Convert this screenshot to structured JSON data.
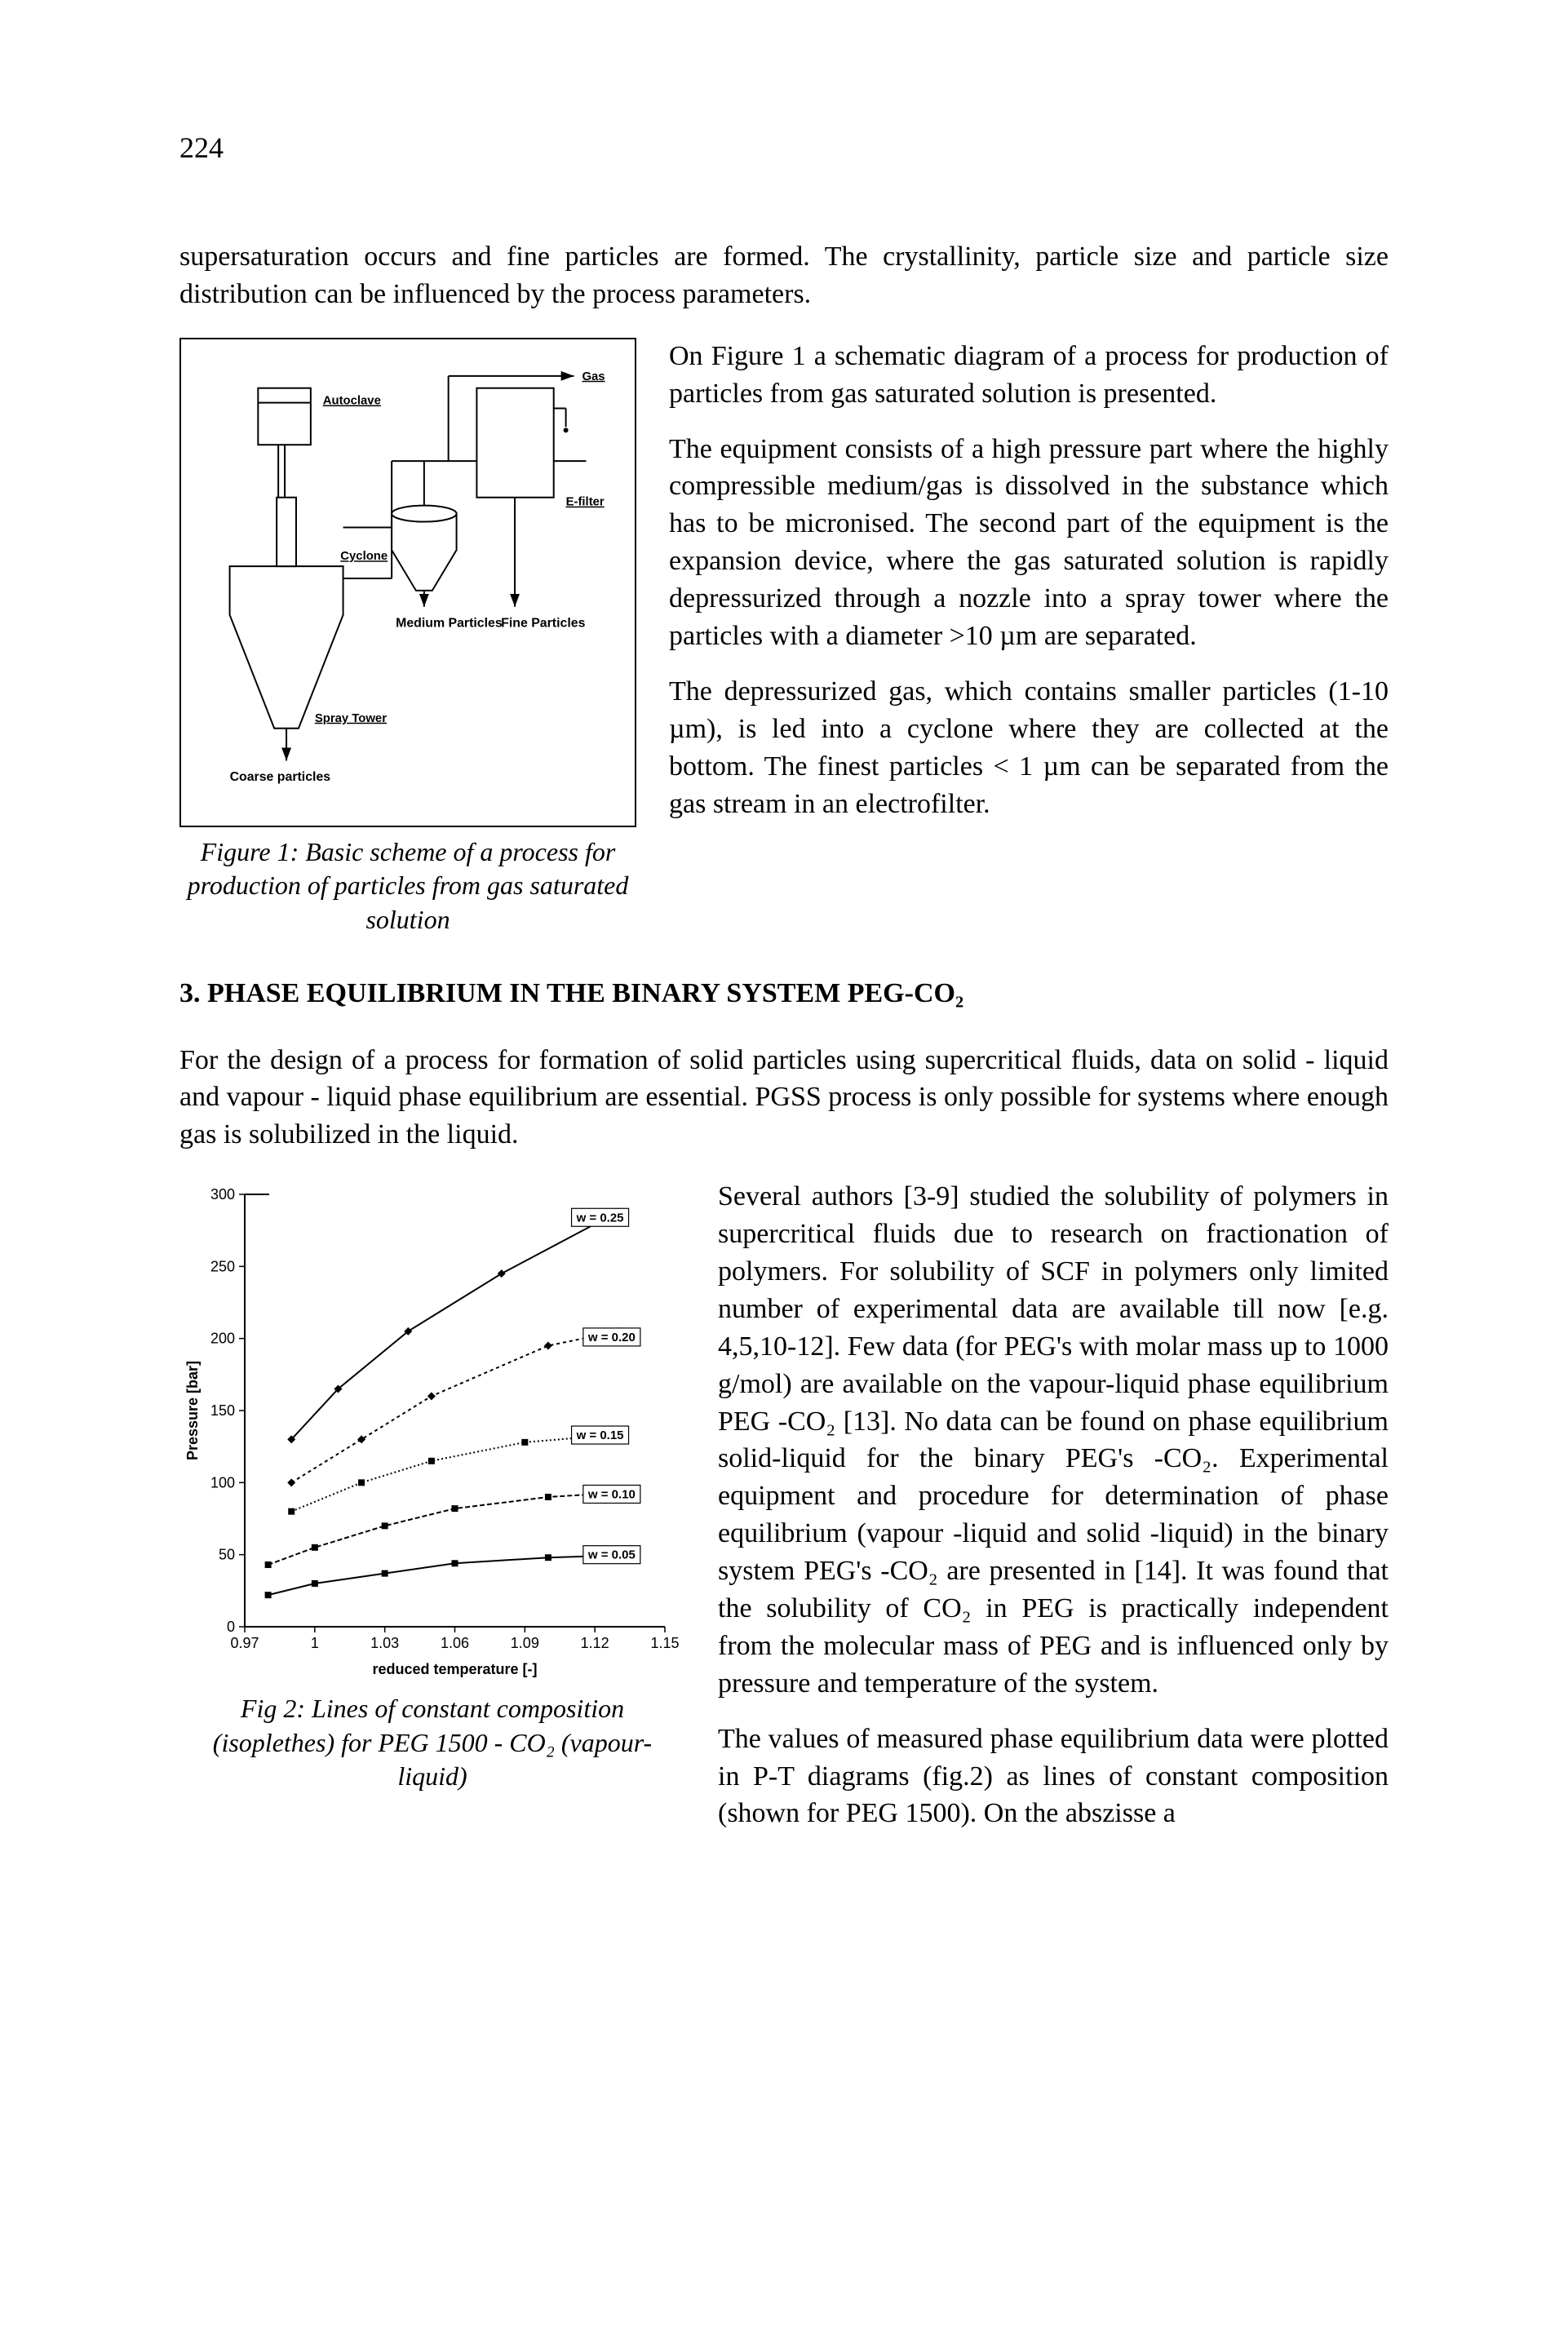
{
  "page_number": "224",
  "intro_para": "supersaturation occurs and fine particles are formed. The crystallinity, particle size and particle size distribution can be influenced by the process parameters.",
  "fig1": {
    "labels": {
      "gas": "Gas",
      "autoclave": "Autoclave",
      "efilter": "E-filter",
      "cyclone": "Cyclone",
      "medium": "Medium Particles",
      "fine": "Fine Particles",
      "spray": "Spray Tower",
      "coarse": "Coarse particles"
    },
    "caption": "Figure 1: Basic scheme of a process for production of particles from gas saturated solution"
  },
  "paras1": {
    "p1": "On Figure 1 a schematic diagram of a process for production of particles from gas saturated solution is presented.",
    "p2": "The equipment consists of a high pressure part where the highly compressible medium/gas is dissolved in the substance which has to be micronised. The second part of the equipment is the expansion device, where the gas saturated solution is rapidly depressurized through a nozzle into a spray tower where the particles with a diameter >10 µm are separated.",
    "p3": "The depressurized gas, which contains smaller particles (1-10 µm), is led into a cyclone where they are collected at the bottom. The finest particles < 1 µm can be separated from the gas stream in an electrofilter."
  },
  "heading": "3. PHASE EQUILIBRIUM IN THE BINARY SYSTEM PEG-CO₂",
  "para_after_heading": "For the design of a process for formation of solid particles using supercritical fluids, data on solid - liquid and vapour - liquid phase equilibrium are essential. PGSS process is only possible for systems where enough gas is solubilized in the liquid.",
  "fig2": {
    "caption": "Fig 2: Lines of constant composition (isoplethes) for PEG 1500 - CO₂ (vapour-liquid)",
    "x_label": "reduced temperature [-]",
    "y_label": "Pressure [bar]",
    "x_ticks": [
      "0.97",
      "1",
      "1.03",
      "1.06",
      "1.09",
      "1.12",
      "1.15"
    ],
    "y_ticks": [
      "0",
      "50",
      "100",
      "150",
      "200",
      "250",
      "300"
    ],
    "series": [
      {
        "label": "w = 0.25",
        "dash": "none",
        "marker": "diamond",
        "points": [
          [
            0.99,
            130
          ],
          [
            1.01,
            165
          ],
          [
            1.04,
            205
          ],
          [
            1.08,
            245
          ],
          [
            1.13,
            288
          ]
        ],
        "label_at": [
          1.11,
          284
        ]
      },
      {
        "label": "w = 0.20",
        "dash": "4,4",
        "marker": "diamond",
        "points": [
          [
            0.99,
            100
          ],
          [
            1.02,
            130
          ],
          [
            1.05,
            160
          ],
          [
            1.1,
            195
          ],
          [
            1.13,
            205
          ]
        ],
        "label_at": [
          1.115,
          201
        ]
      },
      {
        "label": "w = 0.15",
        "dash": "2,3",
        "marker": "square",
        "points": [
          [
            0.99,
            80
          ],
          [
            1.02,
            100
          ],
          [
            1.05,
            115
          ],
          [
            1.09,
            128
          ],
          [
            1.12,
            132
          ]
        ],
        "label_at": [
          1.11,
          133
        ]
      },
      {
        "label": "w = 0.10",
        "dash": "6,3",
        "marker": "square",
        "points": [
          [
            0.98,
            43
          ],
          [
            1.0,
            55
          ],
          [
            1.03,
            70
          ],
          [
            1.06,
            82
          ],
          [
            1.1,
            90
          ],
          [
            1.12,
            92
          ]
        ],
        "label_at": [
          1.115,
          92
        ]
      },
      {
        "label": "w = 0.05",
        "dash": "none",
        "marker": "square",
        "points": [
          [
            0.98,
            22
          ],
          [
            1.0,
            30
          ],
          [
            1.03,
            37
          ],
          [
            1.06,
            44
          ],
          [
            1.1,
            48
          ],
          [
            1.12,
            49
          ]
        ],
        "label_at": [
          1.115,
          50
        ]
      }
    ]
  },
  "paras2": {
    "p1": "Several authors [3-9] studied the solubility of polymers in supercritical fluids due to research on fractionation of polymers. For solubility of SCF in polymers only limited number of experimental data are available till now [e.g. 4,5,10-12]. Few data (for PEG's with molar mass up to 1000 g/mol) are available on the vapour-liquid phase equilibrium PEG -CO₂ [13]. No data can be found on phase equilibrium solid-liquid for the binary PEG's -CO₂. Experimental equipment and procedure for determination of phase equilibrium (vapour -liquid and solid -liquid) in the binary system PEG's -CO₂ are presented in [14]. It was found that the solubility of CO₂ in PEG is practically independent from the molecular mass of PEG and is influenced only by pressure and temperature of the system.",
    "p2": "The values of measured phase equilibrium data were plotted in P-T diagrams (fig.2) as lines of constant composition (shown for PEG 1500). On the abszisse a"
  }
}
